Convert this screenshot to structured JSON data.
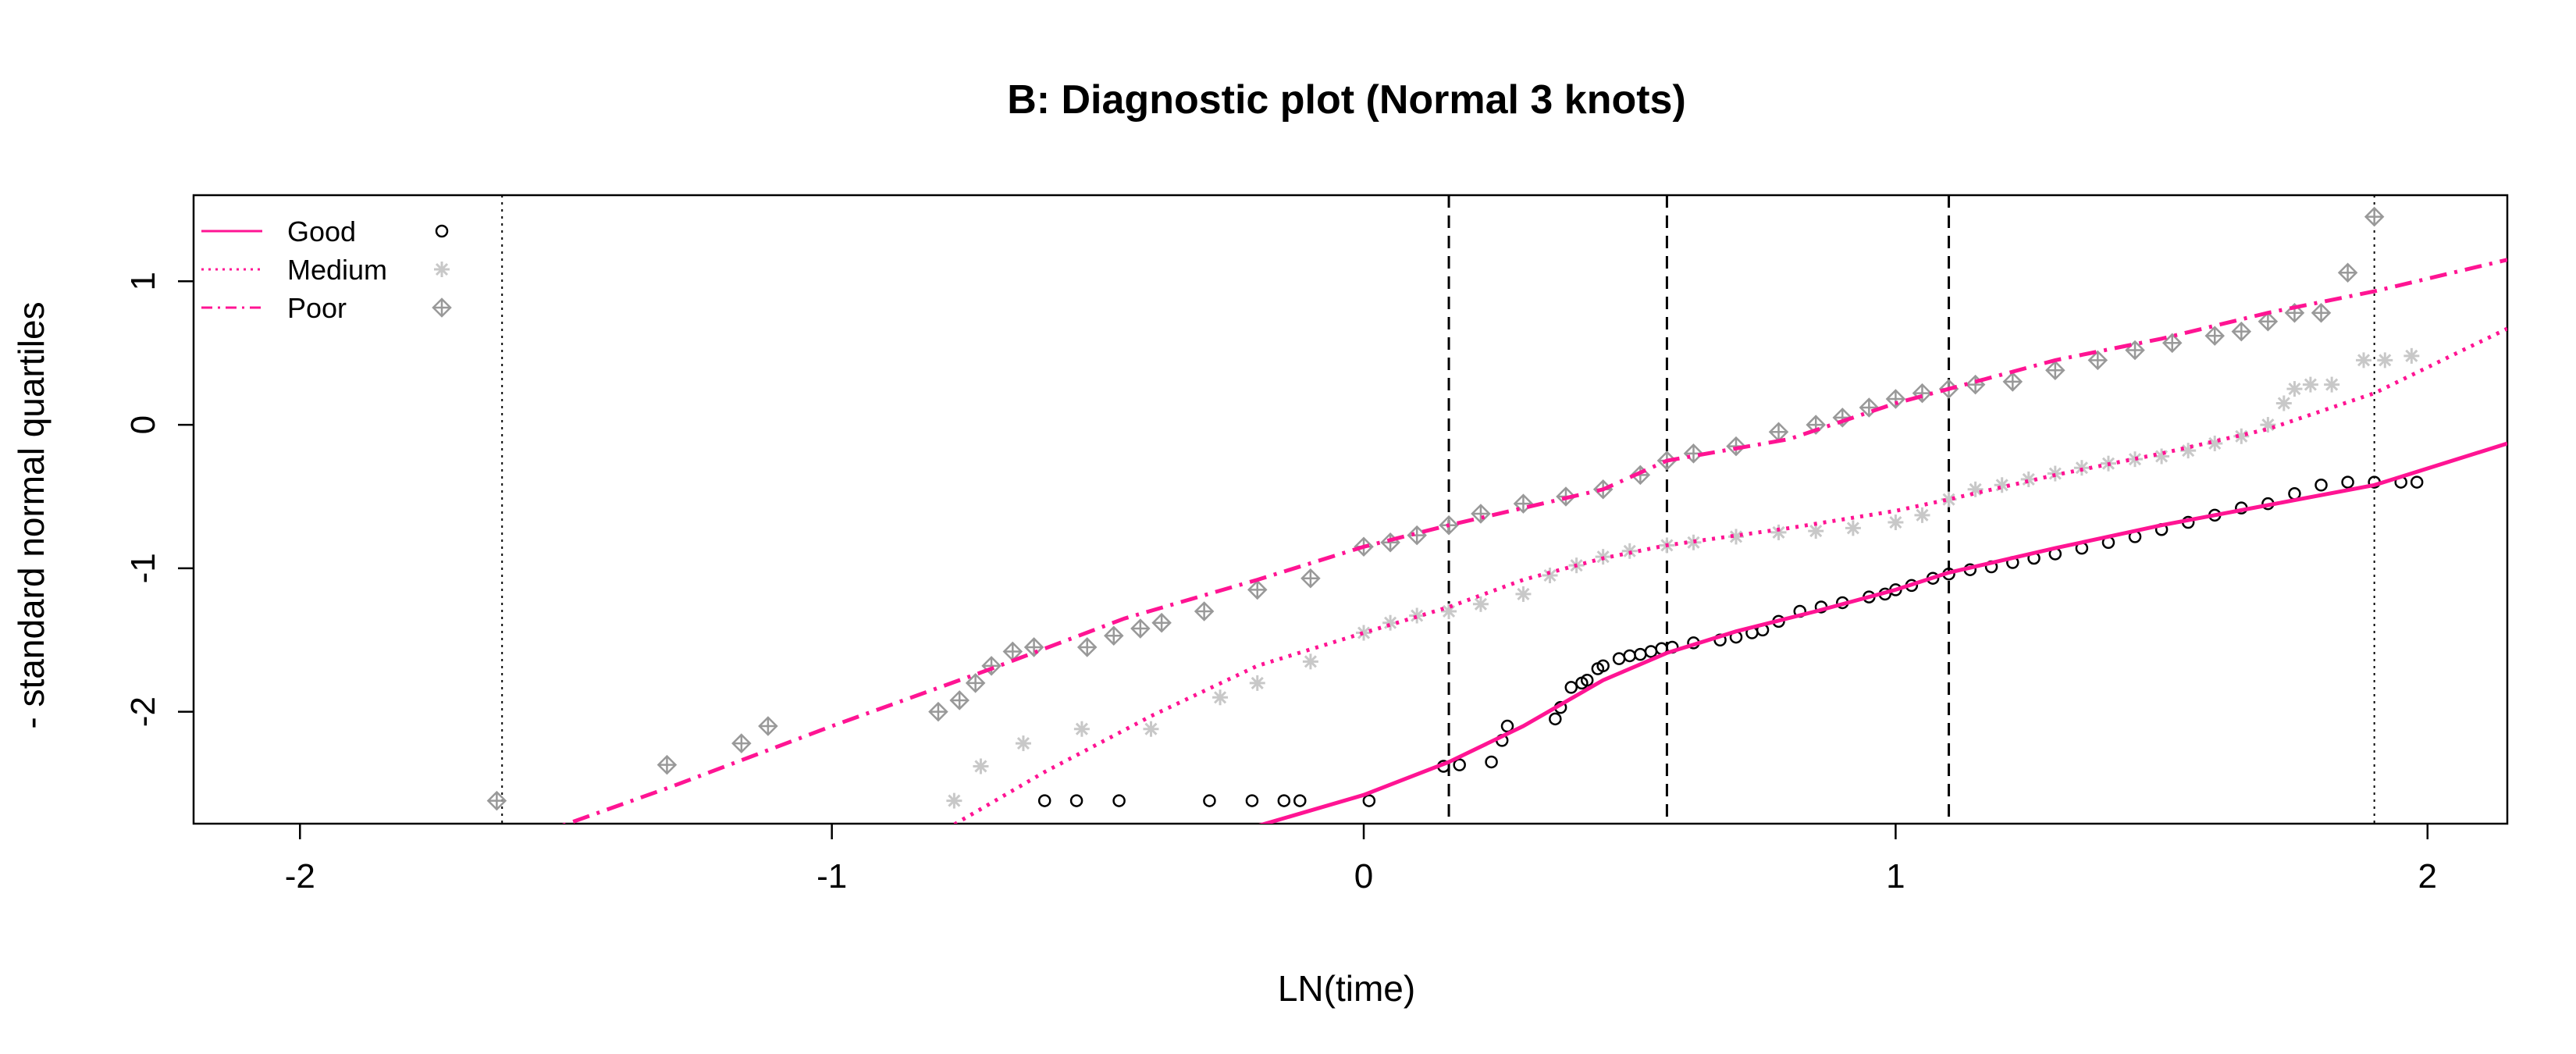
{
  "chart_data": {
    "type": "scatter",
    "title": "B: Diagnostic plot (Normal 3 knots)",
    "xlabel": "LN(time)",
    "ylabel": "- standard normal quartiles",
    "xlim": [
      -2.2,
      2.15
    ],
    "ylim": [
      -2.78,
      1.6
    ],
    "xticks": [
      -2,
      -1,
      0,
      1,
      2
    ],
    "yticks": [
      -2,
      -1,
      0,
      1
    ],
    "grid": false,
    "legend_position": "top-left",
    "knots": [
      0.16,
      0.57,
      1.1
    ],
    "boundary_knots": [
      -1.62,
      1.9
    ],
    "colors": {
      "line": "#ff1493",
      "good": "#000000",
      "medium": "#c8c8c8",
      "poor": "#999999",
      "knot": "#000000"
    },
    "series": [
      {
        "name": "Good",
        "marker": "circle",
        "line_style": "solid",
        "fit": [
          [
            -0.25,
            -2.85
          ],
          [
            0,
            -2.58
          ],
          [
            0.16,
            -2.35
          ],
          [
            0.3,
            -2.1
          ],
          [
            0.45,
            -1.78
          ],
          [
            0.57,
            -1.59
          ],
          [
            0.7,
            -1.44
          ],
          [
            0.85,
            -1.3
          ],
          [
            1.0,
            -1.15
          ],
          [
            1.1,
            -1.03
          ],
          [
            1.3,
            -0.86
          ],
          [
            1.5,
            -0.7
          ],
          [
            1.7,
            -0.56
          ],
          [
            1.9,
            -0.42
          ],
          [
            2.15,
            -0.13
          ]
        ],
        "points": [
          [
            -0.6,
            -2.62
          ],
          [
            -0.54,
            -2.62
          ],
          [
            -0.46,
            -2.62
          ],
          [
            -0.29,
            -2.62
          ],
          [
            -0.21,
            -2.62
          ],
          [
            -0.15,
            -2.62
          ],
          [
            -0.12,
            -2.62
          ],
          [
            0.01,
            -2.62
          ],
          [
            0.15,
            -2.38
          ],
          [
            0.18,
            -2.37
          ],
          [
            0.24,
            -2.35
          ],
          [
            0.26,
            -2.2
          ],
          [
            0.27,
            -2.1
          ],
          [
            0.36,
            -2.05
          ],
          [
            0.37,
            -1.97
          ],
          [
            0.39,
            -1.83
          ],
          [
            0.41,
            -1.8
          ],
          [
            0.42,
            -1.78
          ],
          [
            0.44,
            -1.7
          ],
          [
            0.45,
            -1.68
          ],
          [
            0.48,
            -1.63
          ],
          [
            0.5,
            -1.61
          ],
          [
            0.52,
            -1.6
          ],
          [
            0.54,
            -1.58
          ],
          [
            0.56,
            -1.56
          ],
          [
            0.58,
            -1.55
          ],
          [
            0.62,
            -1.52
          ],
          [
            0.67,
            -1.5
          ],
          [
            0.7,
            -1.48
          ],
          [
            0.73,
            -1.45
          ],
          [
            0.75,
            -1.43
          ],
          [
            0.78,
            -1.37
          ],
          [
            0.82,
            -1.3
          ],
          [
            0.86,
            -1.27
          ],
          [
            0.9,
            -1.24
          ],
          [
            0.95,
            -1.2
          ],
          [
            0.98,
            -1.18
          ],
          [
            1.0,
            -1.15
          ],
          [
            1.03,
            -1.12
          ],
          [
            1.07,
            -1.07
          ],
          [
            1.1,
            -1.04
          ],
          [
            1.14,
            -1.01
          ],
          [
            1.18,
            -0.99
          ],
          [
            1.22,
            -0.96
          ],
          [
            1.26,
            -0.93
          ],
          [
            1.3,
            -0.9
          ],
          [
            1.35,
            -0.86
          ],
          [
            1.4,
            -0.82
          ],
          [
            1.45,
            -0.78
          ],
          [
            1.5,
            -0.73
          ],
          [
            1.55,
            -0.68
          ],
          [
            1.6,
            -0.63
          ],
          [
            1.65,
            -0.58
          ],
          [
            1.7,
            -0.55
          ],
          [
            1.75,
            -0.48
          ],
          [
            1.8,
            -0.42
          ],
          [
            1.85,
            -0.4
          ],
          [
            1.9,
            -0.4
          ],
          [
            1.95,
            -0.4
          ],
          [
            1.98,
            -0.4
          ]
        ]
      },
      {
        "name": "Medium",
        "marker": "asterisk",
        "line_style": "dotted",
        "fit": [
          [
            -0.8,
            -2.85
          ],
          [
            -0.6,
            -2.42
          ],
          [
            -0.4,
            -2.03
          ],
          [
            -0.2,
            -1.68
          ],
          [
            0,
            -1.45
          ],
          [
            0.16,
            -1.27
          ],
          [
            0.3,
            -1.08
          ],
          [
            0.45,
            -0.93
          ],
          [
            0.57,
            -0.84
          ],
          [
            0.8,
            -0.72
          ],
          [
            1.0,
            -0.6
          ],
          [
            1.1,
            -0.52
          ],
          [
            1.3,
            -0.35
          ],
          [
            1.5,
            -0.2
          ],
          [
            1.7,
            -0.03
          ],
          [
            1.9,
            0.22
          ],
          [
            2.15,
            0.67
          ]
        ],
        "points": [
          [
            -0.77,
            -2.62
          ],
          [
            -0.72,
            -2.38
          ],
          [
            -0.64,
            -2.22
          ],
          [
            -0.53,
            -2.12
          ],
          [
            -0.4,
            -2.12
          ],
          [
            -0.27,
            -1.9
          ],
          [
            -0.2,
            -1.8
          ],
          [
            -0.1,
            -1.65
          ],
          [
            0.0,
            -1.45
          ],
          [
            0.05,
            -1.38
          ],
          [
            0.1,
            -1.33
          ],
          [
            0.16,
            -1.3
          ],
          [
            0.22,
            -1.25
          ],
          [
            0.3,
            -1.18
          ],
          [
            0.35,
            -1.05
          ],
          [
            0.4,
            -0.98
          ],
          [
            0.45,
            -0.92
          ],
          [
            0.5,
            -0.88
          ],
          [
            0.57,
            -0.84
          ],
          [
            0.62,
            -0.82
          ],
          [
            0.7,
            -0.78
          ],
          [
            0.78,
            -0.75
          ],
          [
            0.85,
            -0.74
          ],
          [
            0.92,
            -0.72
          ],
          [
            1.0,
            -0.68
          ],
          [
            1.05,
            -0.63
          ],
          [
            1.1,
            -0.52
          ],
          [
            1.15,
            -0.45
          ],
          [
            1.2,
            -0.42
          ],
          [
            1.25,
            -0.38
          ],
          [
            1.3,
            -0.34
          ],
          [
            1.35,
            -0.3
          ],
          [
            1.4,
            -0.27
          ],
          [
            1.45,
            -0.24
          ],
          [
            1.5,
            -0.22
          ],
          [
            1.55,
            -0.18
          ],
          [
            1.6,
            -0.13
          ],
          [
            1.65,
            -0.08
          ],
          [
            1.7,
            0.0
          ],
          [
            1.73,
            0.15
          ],
          [
            1.75,
            0.25
          ],
          [
            1.78,
            0.28
          ],
          [
            1.82,
            0.28
          ],
          [
            1.88,
            0.45
          ],
          [
            1.92,
            0.45
          ],
          [
            1.97,
            0.48
          ]
        ]
      },
      {
        "name": "Poor",
        "marker": "diamond-plus",
        "line_style": "dashdot",
        "fit": [
          [
            -1.55,
            -2.85
          ],
          [
            -1.3,
            -2.52
          ],
          [
            -1.0,
            -2.1
          ],
          [
            -0.7,
            -1.7
          ],
          [
            -0.45,
            -1.35
          ],
          [
            -0.2,
            -1.08
          ],
          [
            0,
            -0.85
          ],
          [
            0.16,
            -0.7
          ],
          [
            0.3,
            -0.58
          ],
          [
            0.45,
            -0.45
          ],
          [
            0.57,
            -0.25
          ],
          [
            0.8,
            -0.1
          ],
          [
            1.0,
            0.15
          ],
          [
            1.1,
            0.25
          ],
          [
            1.3,
            0.45
          ],
          [
            1.5,
            0.6
          ],
          [
            1.7,
            0.78
          ],
          [
            1.9,
            0.93
          ],
          [
            2.15,
            1.15
          ]
        ],
        "points": [
          [
            -1.63,
            -2.62
          ],
          [
            -1.31,
            -2.37
          ],
          [
            -1.17,
            -2.22
          ],
          [
            -1.12,
            -2.1
          ],
          [
            -0.8,
            -2.0
          ],
          [
            -0.76,
            -1.92
          ],
          [
            -0.73,
            -1.8
          ],
          [
            -0.7,
            -1.68
          ],
          [
            -0.66,
            -1.58
          ],
          [
            -0.62,
            -1.55
          ],
          [
            -0.52,
            -1.55
          ],
          [
            -0.47,
            -1.47
          ],
          [
            -0.42,
            -1.42
          ],
          [
            -0.38,
            -1.38
          ],
          [
            -0.3,
            -1.3
          ],
          [
            -0.2,
            -1.15
          ],
          [
            -0.1,
            -1.07
          ],
          [
            0.0,
            -0.85
          ],
          [
            0.05,
            -0.82
          ],
          [
            0.1,
            -0.77
          ],
          [
            0.16,
            -0.7
          ],
          [
            0.22,
            -0.62
          ],
          [
            0.3,
            -0.55
          ],
          [
            0.38,
            -0.5
          ],
          [
            0.45,
            -0.45
          ],
          [
            0.52,
            -0.35
          ],
          [
            0.57,
            -0.25
          ],
          [
            0.62,
            -0.2
          ],
          [
            0.7,
            -0.15
          ],
          [
            0.78,
            -0.05
          ],
          [
            0.85,
            0.0
          ],
          [
            0.9,
            0.05
          ],
          [
            0.95,
            0.12
          ],
          [
            1.0,
            0.18
          ],
          [
            1.05,
            0.22
          ],
          [
            1.1,
            0.25
          ],
          [
            1.15,
            0.28
          ],
          [
            1.22,
            0.3
          ],
          [
            1.3,
            0.38
          ],
          [
            1.38,
            0.45
          ],
          [
            1.45,
            0.52
          ],
          [
            1.52,
            0.57
          ],
          [
            1.6,
            0.62
          ],
          [
            1.65,
            0.65
          ],
          [
            1.7,
            0.72
          ],
          [
            1.75,
            0.78
          ],
          [
            1.8,
            0.78
          ],
          [
            1.85,
            1.06
          ],
          [
            1.9,
            1.45
          ]
        ]
      }
    ]
  }
}
